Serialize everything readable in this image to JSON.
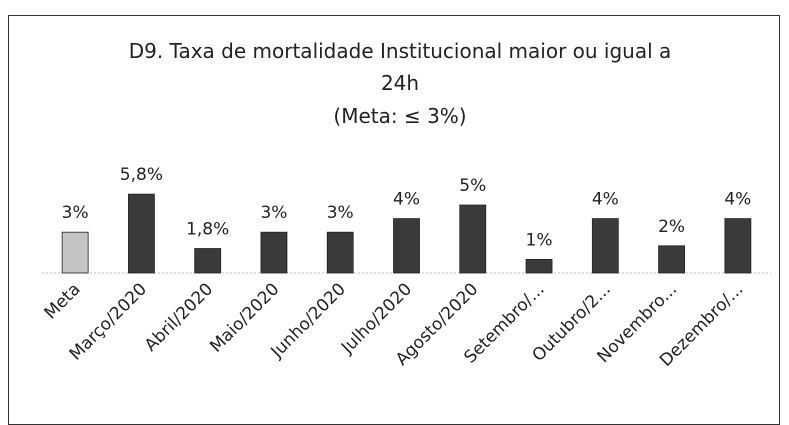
{
  "chart_data": {
    "type": "bar",
    "title": "D9. Taxa de mortalidade Institucional maior ou igual a 24h",
    "subtitle": "(Meta: ≤ 3%)",
    "categories": [
      "Meta",
      "Março/2020",
      "Abril/2020",
      "Maio/2020",
      "Junho/2020",
      "Julho/2020",
      "Agosto/2020",
      "Setembro/...",
      "Outubro/2...",
      "Novembro...",
      "Dezembro/..."
    ],
    "values": [
      3,
      5.8,
      1.8,
      3,
      3,
      4,
      5,
      1,
      4,
      2,
      4
    ],
    "value_labels": [
      "3%",
      "5,8%",
      "1,8%",
      "3%",
      "3%",
      "4%",
      "5%",
      "1%",
      "4%",
      "2%",
      "4%"
    ],
    "colors": [
      "#c4c4c4",
      "#3a3a3a",
      "#3a3a3a",
      "#3a3a3a",
      "#3a3a3a",
      "#3a3a3a",
      "#3a3a3a",
      "#3a3a3a",
      "#3a3a3a",
      "#3a3a3a",
      "#3a3a3a"
    ]
  }
}
